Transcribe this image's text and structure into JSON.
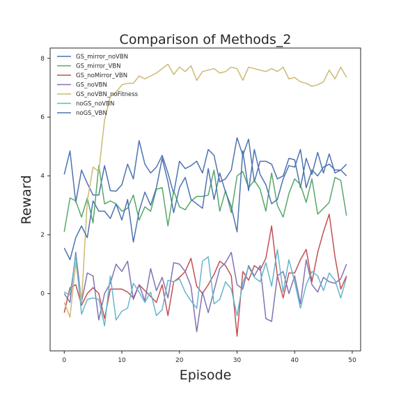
{
  "chart_data": {
    "type": "line",
    "title": "Comparison of Methods_2",
    "xlabel": "Episode",
    "ylabel": "Reward",
    "xlim": [
      -2.45,
      51.45
    ],
    "ylim": [
      -1.95,
      8.35
    ],
    "x_ticks": [
      0,
      10,
      20,
      30,
      40,
      50
    ],
    "y_ticks": [
      0,
      2,
      4,
      6,
      8
    ],
    "grid": false,
    "legend_position": "top-left",
    "x": [
      0,
      1,
      2,
      3,
      4,
      5,
      6,
      7,
      8,
      9,
      10,
      11,
      12,
      13,
      14,
      15,
      16,
      17,
      18,
      19,
      20,
      21,
      22,
      23,
      24,
      25,
      26,
      27,
      28,
      29,
      30,
      31,
      32,
      33,
      34,
      35,
      36,
      37,
      38,
      39,
      40,
      41,
      42,
      43,
      44,
      45,
      46,
      47,
      48,
      49
    ],
    "series": [
      {
        "name": "GS_mirror_noVBN",
        "color": "#4c72b0",
        "values": [
          4.05,
          4.85,
          3.1,
          4.2,
          3.75,
          3.35,
          3.35,
          4.35,
          3.5,
          3.48,
          3.7,
          4.4,
          3.9,
          5.2,
          4.4,
          4.1,
          4.3,
          4.7,
          4.1,
          3.4,
          4.5,
          4.25,
          4.35,
          4.5,
          4.1,
          4.9,
          4.7,
          3.8,
          3.9,
          4.2,
          5.3,
          4.7,
          5.25,
          3.8,
          4.5,
          4.5,
          4.4,
          3.9,
          4.0,
          4.6,
          4.55,
          3.6,
          4.6,
          4.05,
          4.8,
          4.1,
          4.75,
          4.1,
          4.2,
          4.0
        ]
      },
      {
        "name": "GS_mirror_VBN",
        "color": "#55a868",
        "values": [
          2.1,
          3.25,
          3.15,
          2.6,
          3.25,
          2.4,
          4.35,
          3.05,
          3.15,
          3.05,
          2.8,
          2.9,
          3.35,
          2.5,
          2.95,
          2.8,
          3.55,
          3.6,
          2.3,
          3.5,
          2.95,
          2.85,
          3.15,
          3.3,
          3.3,
          3.35,
          4.2,
          2.8,
          3.5,
          2.75,
          4.0,
          4.15,
          3.6,
          3.85,
          3.55,
          2.8,
          4.1,
          3.0,
          2.6,
          3.4,
          3.9,
          3.7,
          3.1,
          3.9,
          2.7,
          2.9,
          3.1,
          3.95,
          3.85,
          2.65
        ]
      },
      {
        "name": "GS_noMirror_VBN",
        "color": "#c44e52",
        "values": [
          -0.65,
          0.2,
          0.3,
          -0.4,
          0.0,
          0.2,
          0.0,
          -0.85,
          0.15,
          0.15,
          0.15,
          0.05,
          -0.15,
          0.3,
          0.1,
          -0.1,
          -0.3,
          0.3,
          -0.75,
          0.4,
          0.55,
          0.75,
          1.2,
          0.25,
          0.0,
          0.3,
          0.65,
          1.1,
          0.95,
          0.6,
          -1.45,
          0.75,
          0.45,
          0.95,
          0.8,
          1.2,
          2.3,
          0.6,
          -0.15,
          0.7,
          0.7,
          1.15,
          1.5,
          0.4,
          1.4,
          2.1,
          2.7,
          1.25,
          0.15,
          0.6
        ]
      },
      {
        "name": "GS_noVBN",
        "color": "#8172b2",
        "values": [
          0.0,
          -0.3,
          1.4,
          -0.3,
          0.7,
          0.6,
          -0.9,
          0.0,
          0.35,
          1.0,
          0.75,
          1.1,
          -0.2,
          0.3,
          -0.25,
          0.85,
          0.1,
          0.55,
          -0.15,
          1.05,
          1.0,
          0.75,
          0.25,
          -1.3,
          0.05,
          -0.65,
          0.1,
          0.85,
          1.05,
          1.4,
          0.3,
          0.15,
          0.95,
          0.6,
          0.95,
          -0.85,
          -0.95,
          0.6,
          0.75,
          0.0,
          0.6,
          -0.35,
          1.15,
          0.3,
          0.05,
          0.55,
          0.4,
          0.35,
          0.5,
          1.0
        ]
      },
      {
        "name": "GS_noVBN_noFitness",
        "color": "#ccb974",
        "values": [
          -0.3,
          -0.8,
          1.05,
          -0.3,
          3.15,
          4.3,
          4.15,
          5.9,
          6.7,
          6.85,
          7.1,
          7.15,
          7.15,
          7.4,
          7.3,
          7.4,
          7.5,
          7.65,
          7.8,
          7.45,
          7.7,
          7.55,
          7.75,
          7.25,
          7.55,
          7.6,
          7.65,
          7.5,
          7.55,
          7.7,
          7.65,
          7.25,
          7.7,
          7.65,
          7.6,
          7.55,
          7.65,
          7.55,
          7.7,
          7.3,
          7.35,
          7.2,
          7.15,
          7.05,
          7.1,
          7.2,
          7.6,
          7.3,
          7.7,
          7.35
        ]
      },
      {
        "name": "noGS_noVBN",
        "color": "#64b5cd",
        "values": [
          0.05,
          -0.05,
          1.3,
          -0.7,
          -0.2,
          -0.15,
          -0.2,
          -1.1,
          0.6,
          -0.9,
          -0.6,
          -0.5,
          0.35,
          0.05,
          -0.3,
          0.05,
          -0.75,
          -0.55,
          0.45,
          0.4,
          0.5,
          0.05,
          -0.25,
          -0.5,
          1.1,
          1.25,
          -0.35,
          -0.2,
          0.4,
          0.15,
          -0.75,
          0.35,
          0.9,
          0.55,
          0.4,
          1.05,
          0.25,
          1.5,
          0.05,
          1.15,
          0.4,
          -0.5,
          0.3,
          0.75,
          0.6,
          0.1,
          0.7,
          0.45,
          -0.15,
          0.55
        ]
      },
      {
        "name": "noGS_VBN",
        "color": "#4c72b0",
        "values": [
          1.55,
          1.15,
          1.9,
          2.3,
          1.9,
          3.15,
          2.8,
          2.8,
          2.55,
          3.05,
          2.5,
          3.2,
          1.75,
          2.8,
          3.45,
          3.0,
          3.6,
          4.6,
          3.8,
          2.75,
          3.6,
          3.95,
          3.2,
          3.05,
          2.9,
          4.25,
          3.2,
          4.1,
          3.45,
          2.95,
          2.1,
          4.85,
          3.5,
          4.9,
          4.05,
          3.7,
          3.05,
          3.2,
          3.9,
          4.35,
          4.3,
          4.9,
          3.6,
          4.2,
          4.0,
          4.3,
          4.4,
          4.2,
          4.2,
          4.4
        ]
      }
    ]
  }
}
